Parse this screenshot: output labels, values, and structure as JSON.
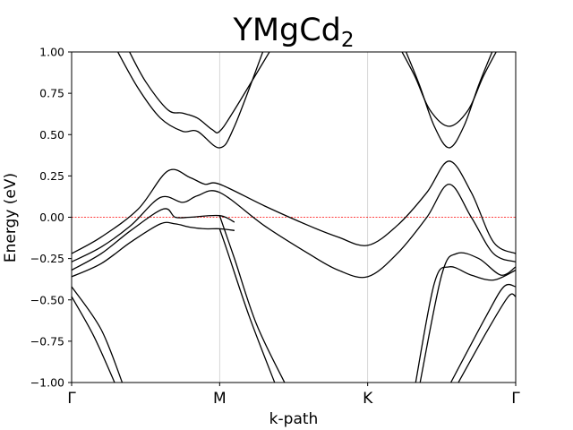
{
  "chart_data": {
    "type": "line",
    "title": "YMgCd",
    "title_subscript": "2",
    "xlabel": "k-path",
    "ylabel": "Energy (eV)",
    "ylim": [
      -1.0,
      1.0
    ],
    "xlim": [
      0,
      3
    ],
    "yticks": [
      "1.00",
      "0.75",
      "0.50",
      "0.25",
      "0.00",
      "−0.25",
      "−0.50",
      "−0.75",
      "−1.00"
    ],
    "ytick_values": [
      1.0,
      0.75,
      0.5,
      0.25,
      0.0,
      -0.25,
      -0.5,
      -0.75,
      -1.0
    ],
    "kpoints": [
      {
        "label": "Γ",
        "x": 0
      },
      {
        "label": "M",
        "x": 1
      },
      {
        "label": "K",
        "x": 2
      },
      {
        "label": "Γ",
        "x": 3
      }
    ],
    "fermi_level": 0.0,
    "colors": {
      "bands": "#000000",
      "fermi": "#ff0000",
      "vlines": "#cccccc"
    },
    "grid": false,
    "series": [
      {
        "x": [
          0.3,
          0.45,
          0.6,
          0.75,
          0.85,
          1.0,
          1.1,
          1.3
        ],
        "values": [
          1.02,
          0.78,
          0.6,
          0.52,
          0.52,
          0.42,
          0.55,
          1.02
        ]
      },
      {
        "x": [
          0.38,
          0.5,
          0.65,
          0.75,
          0.85,
          0.95,
          1.0,
          1.1,
          1.35
        ],
        "values": [
          1.02,
          0.82,
          0.65,
          0.63,
          0.6,
          0.53,
          0.52,
          0.65,
          1.02
        ]
      },
      {
        "x": [
          2.25,
          2.35,
          2.45,
          2.55,
          2.65,
          2.75,
          2.85
        ],
        "values": [
          1.02,
          0.8,
          0.55,
          0.42,
          0.55,
          0.8,
          1.02
        ]
      },
      {
        "x": [
          2.22,
          2.32,
          2.42,
          2.55,
          2.68,
          2.78,
          2.88
        ],
        "values": [
          1.02,
          0.85,
          0.65,
          0.55,
          0.65,
          0.85,
          1.02
        ]
      },
      {
        "x": [
          0,
          0.2,
          0.45,
          0.65,
          0.8,
          0.9,
          1.0,
          1.3,
          1.6,
          1.8,
          2.0,
          2.2,
          2.4,
          2.55,
          2.7,
          2.85,
          3.0
        ],
        "values": [
          -0.22,
          -0.12,
          0.05,
          0.28,
          0.24,
          0.2,
          0.2,
          0.07,
          -0.05,
          -0.12,
          -0.17,
          -0.05,
          0.15,
          0.34,
          0.15,
          -0.15,
          -0.22
        ]
      },
      {
        "x": [
          0,
          0.2,
          0.4,
          0.6,
          0.75,
          0.85,
          1.0,
          1.3,
          1.6,
          1.8,
          2.0,
          2.2,
          2.4,
          2.55,
          2.7,
          2.85,
          3.0
        ],
        "values": [
          -0.27,
          -0.18,
          -0.05,
          0.12,
          0.09,
          0.13,
          0.15,
          -0.05,
          -0.22,
          -0.32,
          -0.36,
          -0.22,
          0.0,
          0.2,
          0.0,
          -0.22,
          -0.27
        ]
      },
      {
        "x": [
          0,
          0.2,
          0.4,
          0.62,
          0.7,
          0.8,
          1.0,
          1.1
        ],
        "values": [
          -0.32,
          -0.22,
          -0.08,
          0.05,
          0.0,
          0.0,
          0.01,
          -0.03
        ]
      },
      {
        "x": [
          0,
          0.2,
          0.4,
          0.6,
          0.7,
          0.8,
          0.9,
          1.0,
          1.1
        ],
        "values": [
          -0.36,
          -0.28,
          -0.15,
          -0.04,
          -0.04,
          -0.06,
          -0.07,
          -0.07,
          -0.08
        ]
      },
      {
        "x": [
          0,
          0.2,
          0.35
        ],
        "values": [
          -0.42,
          -0.68,
          -1.02
        ]
      },
      {
        "x": [
          0,
          0.15,
          0.3
        ],
        "values": [
          -0.48,
          -0.72,
          -1.02
        ]
      },
      {
        "x": [
          1.0,
          1.1,
          1.25,
          1.45
        ],
        "values": [
          0.01,
          -0.25,
          -0.65,
          -1.02
        ]
      },
      {
        "x": [
          1.0,
          1.05,
          1.2,
          1.38
        ],
        "values": [
          -0.07,
          -0.2,
          -0.6,
          -1.02
        ]
      },
      {
        "x": [
          2.35,
          2.5,
          2.6,
          2.75,
          2.9,
          3.0
        ],
        "values": [
          -1.02,
          -0.35,
          -0.22,
          -0.25,
          -0.35,
          -0.3
        ]
      },
      {
        "x": [
          2.32,
          2.45,
          2.55,
          2.7,
          2.85,
          3.0
        ],
        "values": [
          -1.02,
          -0.4,
          -0.3,
          -0.35,
          -0.38,
          -0.32
        ]
      },
      {
        "x": [
          2.55,
          2.8,
          2.92,
          3.0
        ],
        "values": [
          -1.02,
          -0.6,
          -0.42,
          -0.42
        ]
      },
      {
        "x": [
          2.6,
          2.8,
          2.95,
          3.0
        ],
        "values": [
          -1.02,
          -0.7,
          -0.48,
          -0.48
        ]
      }
    ]
  }
}
